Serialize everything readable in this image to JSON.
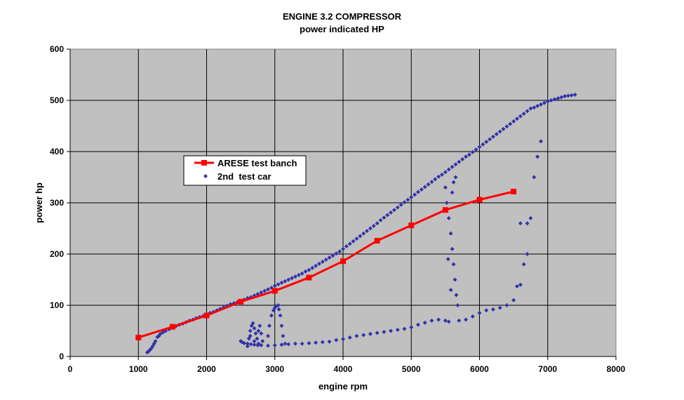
{
  "chart_data": {
    "type": "scatter",
    "title": "ENGINE 3.2 COMPRESSOR",
    "subtitle": "power indicated HP",
    "xlabel": "engine rpm",
    "ylabel": "power hp",
    "xlim": [
      0,
      8000
    ],
    "ylim": [
      0,
      600
    ],
    "xticks": [
      0,
      1000,
      2000,
      3000,
      4000,
      5000,
      6000,
      7000,
      8000
    ],
    "yticks": [
      0,
      100,
      200,
      300,
      400,
      500,
      600
    ],
    "grid": true,
    "plot_background": "#c0c0c0",
    "legend_position": "upper-left",
    "series": [
      {
        "name": "ARESE test banch",
        "kind": "line-with-square-markers",
        "color": "#ff0000",
        "x": [
          1000,
          1500,
          2000,
          2500,
          3000,
          3500,
          4000,
          4500,
          5000,
          5500,
          6000,
          6500
        ],
        "y": [
          37,
          58,
          80,
          107,
          128,
          154,
          186,
          226,
          256,
          286,
          306,
          322
        ]
      },
      {
        "name": "2nd  test car",
        "kind": "scatter-diamond",
        "color": "#3333aa",
        "points": [
          [
            1130,
            8
          ],
          [
            1150,
            10
          ],
          [
            1170,
            13
          ],
          [
            1190,
            16
          ],
          [
            1210,
            20
          ],
          [
            1230,
            25
          ],
          [
            1250,
            30
          ],
          [
            1280,
            38
          ],
          [
            1300,
            40
          ],
          [
            1320,
            44
          ],
          [
            1360,
            47
          ],
          [
            1400,
            50
          ],
          [
            1450,
            53
          ],
          [
            1500,
            56
          ],
          [
            1550,
            59
          ],
          [
            1600,
            62
          ],
          [
            1650,
            64
          ],
          [
            1700,
            67
          ],
          [
            1750,
            70
          ],
          [
            1800,
            72
          ],
          [
            1850,
            75
          ],
          [
            1900,
            77
          ],
          [
            1950,
            79
          ],
          [
            2000,
            82
          ],
          [
            2050,
            85
          ],
          [
            2100,
            87
          ],
          [
            2150,
            90
          ],
          [
            2200,
            93
          ],
          [
            2250,
            96
          ],
          [
            2300,
            99
          ],
          [
            2350,
            102
          ],
          [
            2400,
            104
          ],
          [
            2450,
            106
          ],
          [
            2500,
            108
          ],
          [
            2550,
            111
          ],
          [
            2600,
            114
          ],
          [
            2650,
            116
          ],
          [
            2700,
            119
          ],
          [
            2750,
            122
          ],
          [
            2800,
            125
          ],
          [
            2850,
            128
          ],
          [
            2900,
            131
          ],
          [
            2950,
            134
          ],
          [
            3000,
            138
          ],
          [
            3050,
            141
          ],
          [
            3100,
            144
          ],
          [
            3150,
            147
          ],
          [
            3200,
            150
          ],
          [
            3250,
            153
          ],
          [
            3300,
            156
          ],
          [
            3350,
            159
          ],
          [
            3400,
            162
          ],
          [
            3450,
            166
          ],
          [
            3500,
            169
          ],
          [
            3550,
            173
          ],
          [
            3600,
            177
          ],
          [
            3650,
            181
          ],
          [
            3700,
            185
          ],
          [
            3750,
            189
          ],
          [
            3800,
            193
          ],
          [
            3850,
            197
          ],
          [
            3900,
            201
          ],
          [
            3950,
            205
          ],
          [
            4000,
            210
          ],
          [
            4050,
            215
          ],
          [
            4100,
            220
          ],
          [
            4150,
            225
          ],
          [
            4200,
            230
          ],
          [
            4250,
            235
          ],
          [
            4300,
            240
          ],
          [
            4350,
            245
          ],
          [
            4400,
            250
          ],
          [
            4450,
            255
          ],
          [
            4500,
            260
          ],
          [
            4550,
            266
          ],
          [
            4600,
            271
          ],
          [
            4650,
            276
          ],
          [
            4700,
            281
          ],
          [
            4750,
            286
          ],
          [
            4800,
            291
          ],
          [
            4850,
            296
          ],
          [
            4900,
            301
          ],
          [
            4950,
            306
          ],
          [
            5000,
            311
          ],
          [
            5050,
            316
          ],
          [
            5100,
            321
          ],
          [
            5150,
            326
          ],
          [
            5200,
            331
          ],
          [
            5250,
            336
          ],
          [
            5300,
            341
          ],
          [
            5350,
            346
          ],
          [
            5400,
            351
          ],
          [
            5450,
            355
          ],
          [
            5500,
            360
          ],
          [
            5550,
            365
          ],
          [
            5600,
            370
          ],
          [
            5650,
            375
          ],
          [
            5700,
            380
          ],
          [
            5750,
            385
          ],
          [
            5800,
            390
          ],
          [
            5850,
            394
          ],
          [
            5900,
            399
          ],
          [
            5950,
            404
          ],
          [
            6000,
            409
          ],
          [
            6050,
            414
          ],
          [
            6100,
            419
          ],
          [
            6150,
            424
          ],
          [
            6200,
            429
          ],
          [
            6250,
            434
          ],
          [
            6300,
            439
          ],
          [
            6350,
            444
          ],
          [
            6400,
            449
          ],
          [
            6450,
            454
          ],
          [
            6500,
            459
          ],
          [
            6550,
            464
          ],
          [
            6600,
            469
          ],
          [
            6650,
            474
          ],
          [
            6700,
            479
          ],
          [
            6750,
            484
          ],
          [
            6800,
            486
          ],
          [
            6850,
            489
          ],
          [
            6900,
            492
          ],
          [
            6950,
            495
          ],
          [
            7000,
            498
          ],
          [
            7050,
            500
          ],
          [
            7100,
            502
          ],
          [
            7150,
            504
          ],
          [
            7200,
            506
          ],
          [
            7250,
            508
          ],
          [
            7300,
            509
          ],
          [
            7350,
            510
          ],
          [
            7400,
            511
          ],
          [
            2500,
            30
          ],
          [
            2520,
            28
          ],
          [
            2550,
            26
          ],
          [
            2600,
            25
          ],
          [
            2650,
            24
          ],
          [
            2700,
            23
          ],
          [
            2750,
            22
          ],
          [
            2800,
            22
          ],
          [
            2900,
            21
          ],
          [
            3000,
            22
          ],
          [
            3100,
            23
          ],
          [
            3200,
            24
          ],
          [
            3300,
            25
          ],
          [
            3400,
            25
          ],
          [
            3500,
            26
          ],
          [
            3600,
            27
          ],
          [
            3700,
            28
          ],
          [
            3800,
            29
          ],
          [
            3900,
            32
          ],
          [
            4000,
            34
          ],
          [
            4100,
            37
          ],
          [
            4200,
            40
          ],
          [
            4300,
            42
          ],
          [
            4400,
            44
          ],
          [
            4500,
            46
          ],
          [
            4600,
            48
          ],
          [
            4700,
            50
          ],
          [
            4800,
            52
          ],
          [
            4900,
            54
          ],
          [
            5000,
            57
          ],
          [
            5100,
            62
          ],
          [
            5200,
            66
          ],
          [
            5300,
            70
          ],
          [
            5400,
            72
          ],
          [
            5500,
            70
          ],
          [
            5550,
            68
          ],
          [
            2600,
            20
          ],
          [
            2620,
            35
          ],
          [
            2640,
            50
          ],
          [
            2660,
            60
          ],
          [
            2680,
            65
          ],
          [
            2700,
            55
          ],
          [
            2720,
            45
          ],
          [
            2740,
            35
          ],
          [
            2760,
            50
          ],
          [
            2780,
            60
          ],
          [
            2800,
            45
          ],
          [
            2820,
            30
          ],
          [
            2640,
            40
          ],
          [
            2700,
            30
          ],
          [
            2760,
            25
          ],
          [
            2900,
            40
          ],
          [
            2920,
            60
          ],
          [
            2950,
            80
          ],
          [
            3000,
            95
          ],
          [
            3050,
            100
          ],
          [
            3080,
            80
          ],
          [
            3100,
            60
          ],
          [
            3120,
            40
          ],
          [
            3150,
            25
          ],
          [
            2980,
            90
          ],
          [
            3020,
            98
          ],
          [
            3060,
            92
          ],
          [
            5500,
            330
          ],
          [
            5520,
            300
          ],
          [
            5550,
            270
          ],
          [
            5580,
            240
          ],
          [
            5600,
            210
          ],
          [
            5620,
            180
          ],
          [
            5640,
            150
          ],
          [
            5660,
            120
          ],
          [
            5680,
            100
          ],
          [
            5600,
            320
          ],
          [
            5620,
            340
          ],
          [
            5650,
            350
          ],
          [
            5540,
            190
          ],
          [
            5580,
            130
          ],
          [
            5700,
            70
          ],
          [
            5800,
            72
          ],
          [
            5900,
            78
          ],
          [
            6000,
            85
          ],
          [
            6100,
            90
          ],
          [
            6200,
            92
          ],
          [
            6300,
            95
          ],
          [
            6400,
            100
          ],
          [
            6500,
            110
          ],
          [
            6600,
            140
          ],
          [
            6650,
            180
          ],
          [
            6700,
            200
          ],
          [
            6700,
            260
          ],
          [
            6750,
            270
          ],
          [
            6800,
            350
          ],
          [
            6850,
            390
          ],
          [
            6900,
            420
          ],
          [
            6550,
            137
          ],
          [
            6600,
            260
          ]
        ]
      }
    ]
  }
}
